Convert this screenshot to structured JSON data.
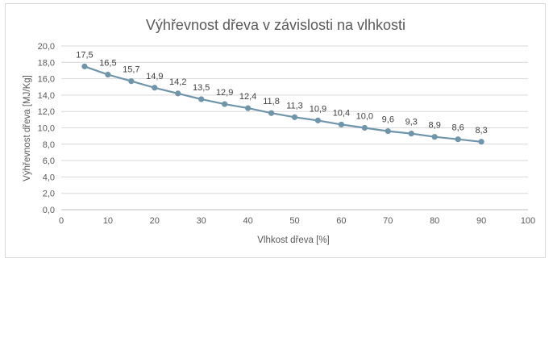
{
  "chart_data": {
    "type": "line",
    "title": "Výhřevnost dřeva v závislosti na vlhkosti",
    "xlabel": "Vlhkost dřeva [%]",
    "ylabel": "Výhřevnost dřeva [MJ/Kg]",
    "xlim": [
      0,
      100
    ],
    "ylim": [
      0,
      20
    ],
    "x_ticks": [
      "0",
      "10",
      "20",
      "30",
      "40",
      "50",
      "60",
      "70",
      "80",
      "90",
      "100"
    ],
    "y_ticks": [
      "0,0",
      "2,0",
      "4,0",
      "6,0",
      "8,0",
      "10,0",
      "12,0",
      "14,0",
      "16,0",
      "18,0",
      "20,0"
    ],
    "grid": true,
    "legend": "none",
    "series": [
      {
        "color": "#6e95aa",
        "points": [
          {
            "x": 5,
            "y": 17.5,
            "label": "17,5"
          },
          {
            "x": 10,
            "y": 16.5,
            "label": "16,5"
          },
          {
            "x": 15,
            "y": 15.7,
            "label": "15,7"
          },
          {
            "x": 20,
            "y": 14.9,
            "label": "14,9"
          },
          {
            "x": 25,
            "y": 14.2,
            "label": "14,2"
          },
          {
            "x": 30,
            "y": 13.5,
            "label": "13,5"
          },
          {
            "x": 35,
            "y": 12.9,
            "label": "12,9"
          },
          {
            "x": 40,
            "y": 12.4,
            "label": "12,4"
          },
          {
            "x": 45,
            "y": 11.8,
            "label": "11,8"
          },
          {
            "x": 50,
            "y": 11.3,
            "label": "11,3"
          },
          {
            "x": 55,
            "y": 10.9,
            "label": "10,9"
          },
          {
            "x": 60,
            "y": 10.4,
            "label": "10,4"
          },
          {
            "x": 65,
            "y": 10.0,
            "label": "10,0"
          },
          {
            "x": 70,
            "y": 9.6,
            "label": "9,6"
          },
          {
            "x": 75,
            "y": 9.3,
            "label": "9,3"
          },
          {
            "x": 80,
            "y": 8.9,
            "label": "8,9"
          },
          {
            "x": 85,
            "y": 8.6,
            "label": "8,6"
          },
          {
            "x": 90,
            "y": 8.3,
            "label": "8,3"
          }
        ]
      }
    ]
  }
}
